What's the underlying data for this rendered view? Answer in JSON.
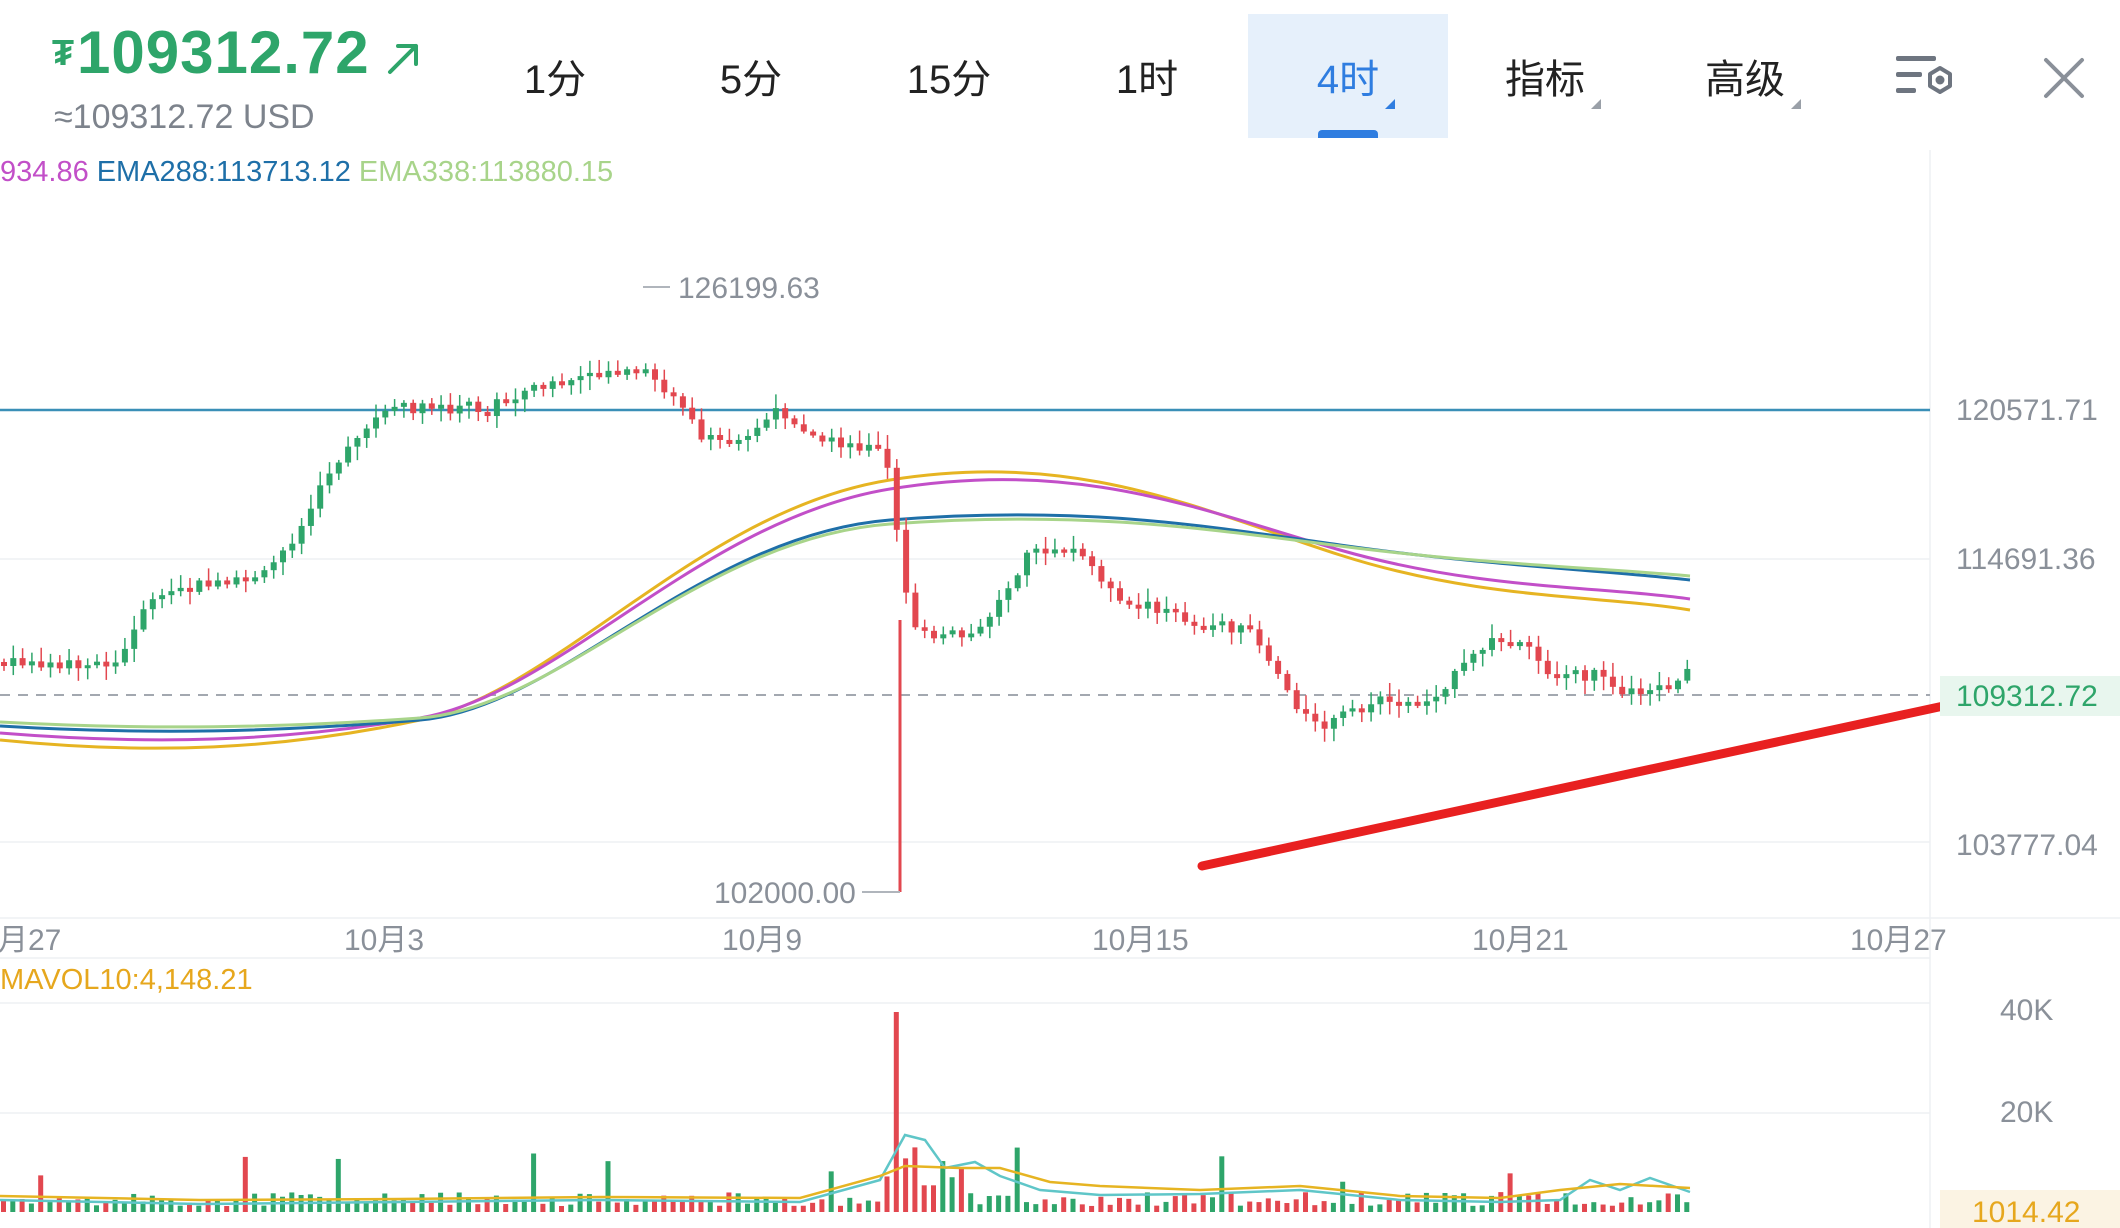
{
  "header": {
    "currency_symbol": "₮",
    "price": "109312.72",
    "price_usd": "≈109312.72 USD",
    "price_color": "#2ea56a",
    "price_direction_icon": "arrow-up-right-icon",
    "tabs": [
      {
        "label": "1分",
        "active": false,
        "dropdown": false
      },
      {
        "label": "5分",
        "active": false,
        "dropdown": false
      },
      {
        "label": "15分",
        "active": false,
        "dropdown": false
      },
      {
        "label": "1时",
        "active": false,
        "dropdown": false
      },
      {
        "label": "4时",
        "active": true,
        "dropdown": true
      },
      {
        "label": "指标",
        "active": false,
        "dropdown": true
      },
      {
        "label": "高级",
        "active": false,
        "dropdown": true
      }
    ],
    "settings_icon": "chart-settings-icon",
    "close_icon": "close-icon"
  },
  "ema_legend": [
    {
      "text": "934.86",
      "color": "#c24fc8"
    },
    {
      "text": "EMA288:113713.12",
      "color": "#1e6fa8"
    },
    {
      "text": "EMA338:113880.15",
      "color": "#a8d48a"
    }
  ],
  "price_axis": {
    "levels": [
      "120571.71",
      "114691.36",
      "109312.72",
      "103777.04"
    ],
    "current_price": "109312.72",
    "current_price_color": "#2ea56a"
  },
  "annotations": {
    "high": "126199.63",
    "low": "102000.00",
    "horizontal_line_color": "#3a8fb7",
    "trendline_color": "#e82020"
  },
  "date_axis": [
    "月27",
    "10月3",
    "10月9",
    "10月15",
    "10月21",
    "10月27"
  ],
  "volume": {
    "legend": "MAVOL10:4,148.21",
    "axis_labels": [
      "40K",
      "20K"
    ],
    "current": "1014.42"
  },
  "colors": {
    "up": "#2ea56a",
    "down": "#e2474f",
    "ema_yellow": "#e6b422",
    "ema_purple": "#c24fc8",
    "ema_blue": "#1e6fa8",
    "ema_green": "#a8d48a",
    "active_tab": "#2f7de0"
  },
  "chart_data": {
    "type": "candlestick",
    "interval": "4时",
    "y_axis_labels": [
      120571.71,
      114691.36,
      109312.72,
      103777.04
    ],
    "high": 126199.63,
    "low": 102000.0,
    "current_price": 109312.72,
    "x_tick_labels": [
      "月27",
      "10月3",
      "10月9",
      "10月15",
      "10月21",
      "10月27"
    ],
    "series": [
      {
        "name": "EMA288",
        "last": 113713.12
      },
      {
        "name": "EMA338",
        "last": 113880.15
      }
    ],
    "volume": {
      "MAVOL10": 4148.21,
      "last": 1014.42,
      "axis_labels": [
        "40K",
        "20K"
      ]
    }
  }
}
